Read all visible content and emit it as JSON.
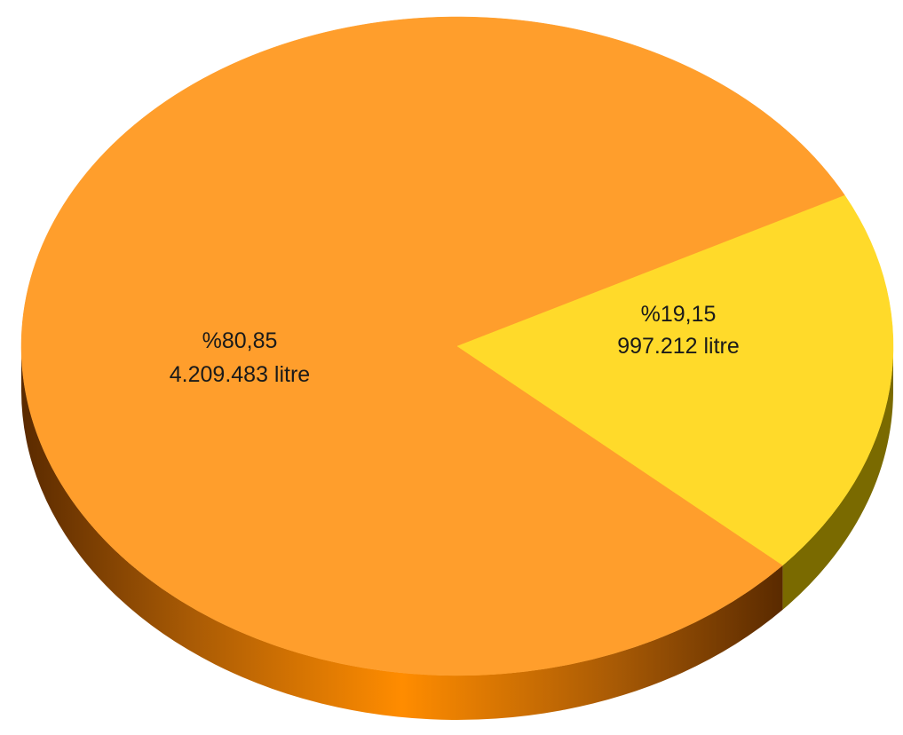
{
  "chart_data": {
    "type": "pie",
    "style": "3d",
    "slices": [
      {
        "percent_label": "%80,85",
        "value_label": "4.209.483 litre",
        "value": 4209483,
        "percent": 80.85,
        "color": "#FF9E2C",
        "side_color": "#B35F05"
      },
      {
        "percent_label": "%19,15",
        "value_label": "997.212 litre",
        "value": 997212,
        "percent": 19.15,
        "color": "#FFDA2A",
        "side_color": "#7A6A00"
      }
    ]
  }
}
